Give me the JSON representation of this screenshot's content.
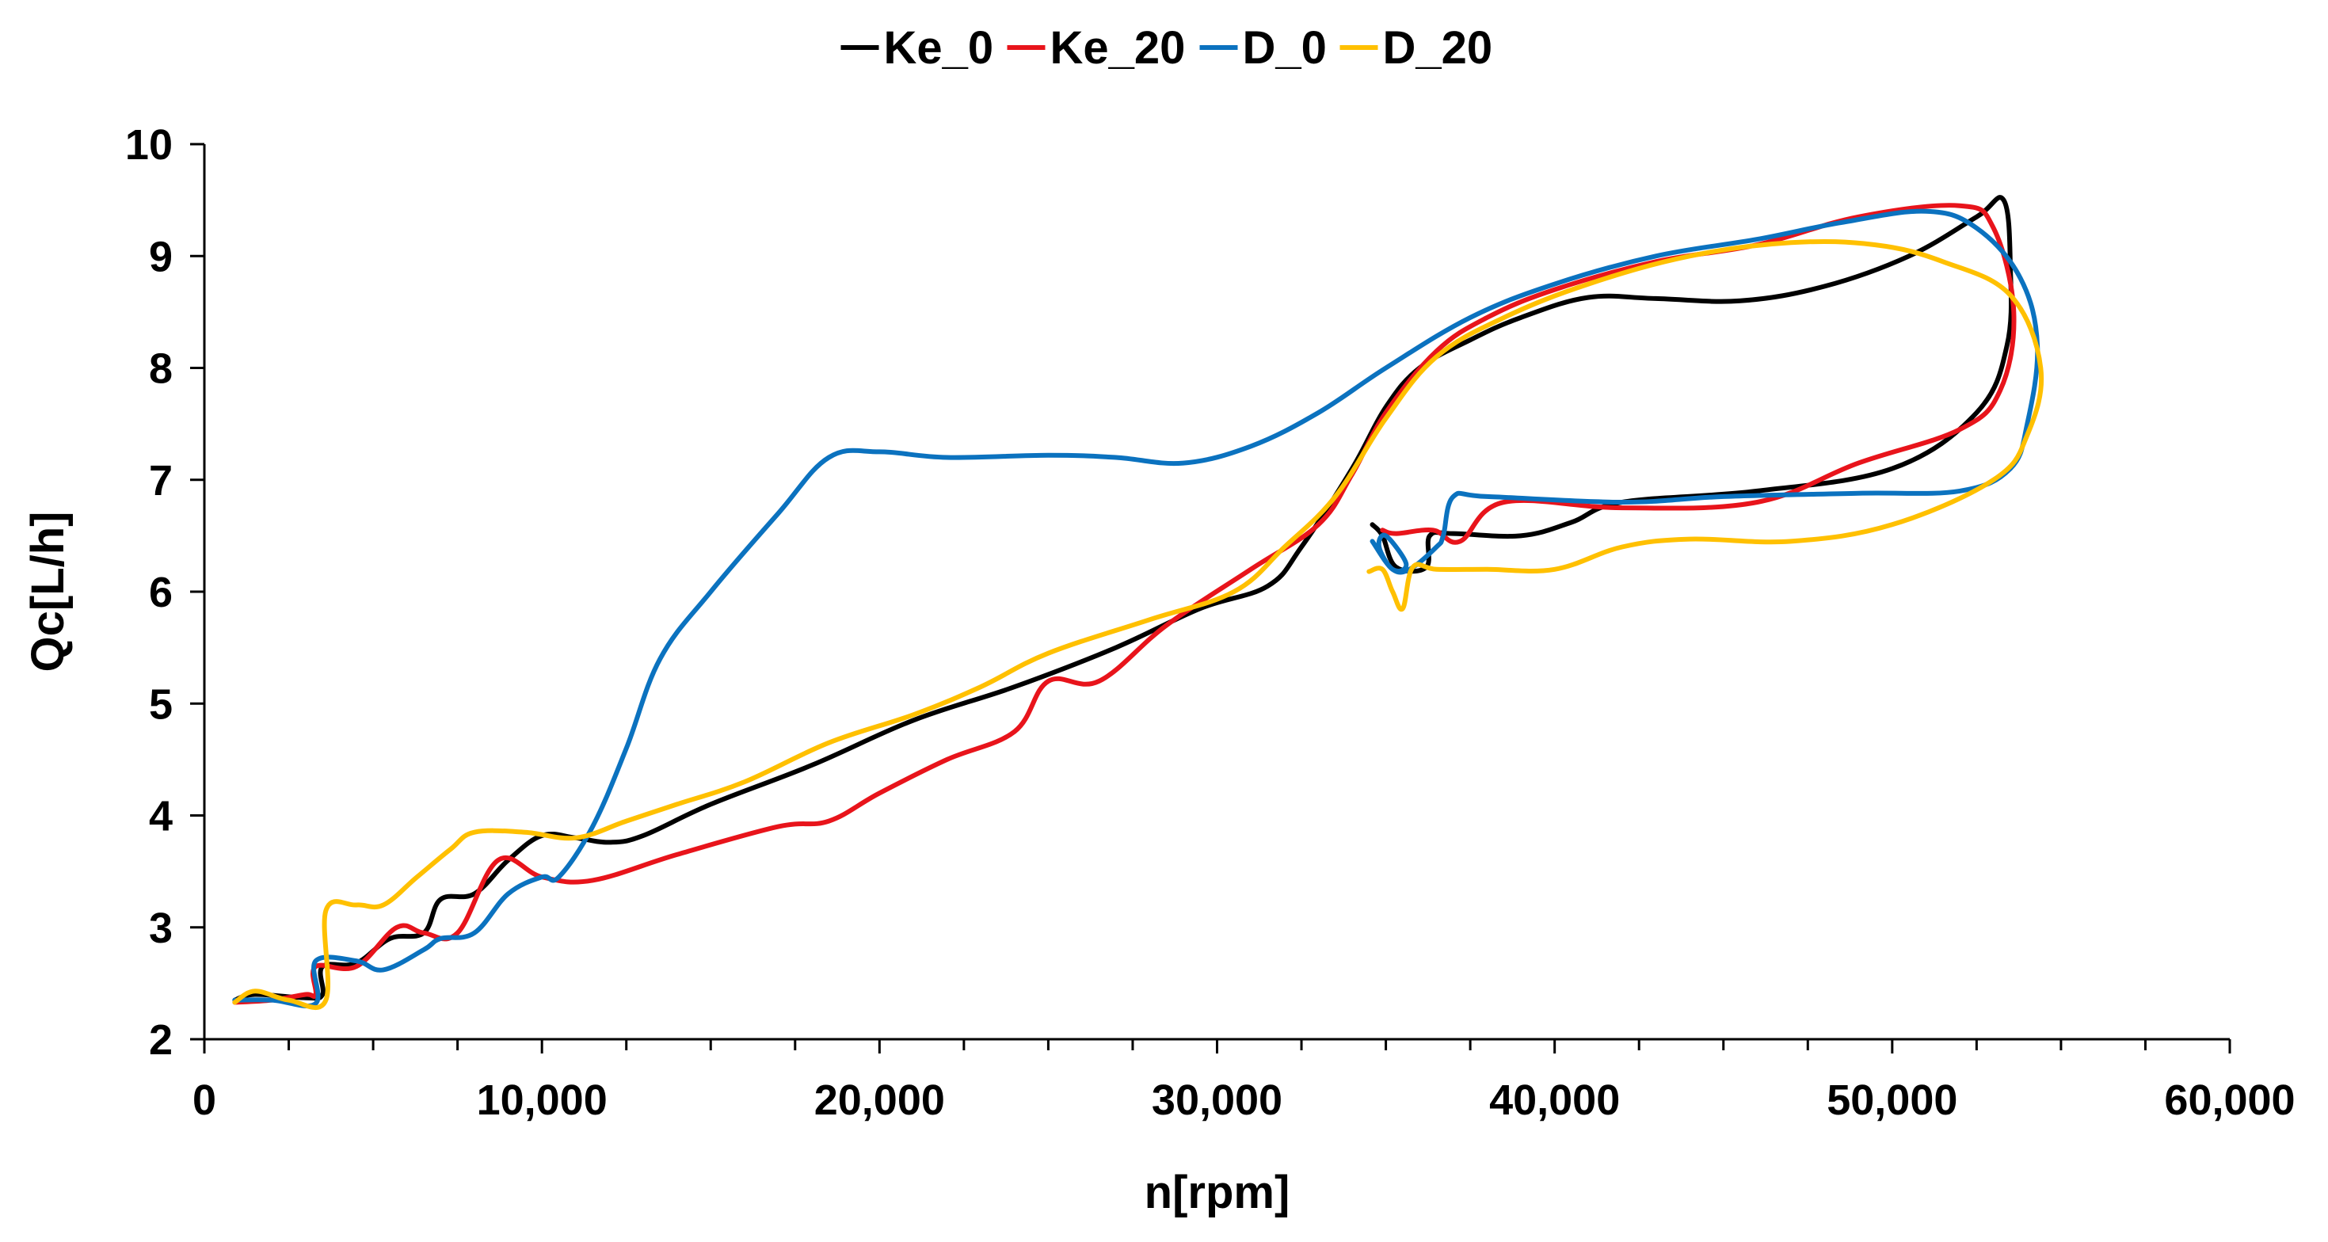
{
  "chart_data": {
    "type": "line",
    "title": "",
    "xlabel": "n[rpm]",
    "ylabel": "Qc[L/h]",
    "xlim": [
      0,
      60000
    ],
    "ylim": [
      2,
      10
    ],
    "xticks": [
      0,
      10000,
      20000,
      30000,
      40000,
      50000,
      60000
    ],
    "xtick_labels": [
      "0",
      "10,000",
      "20,000",
      "30,000",
      "40,000",
      "50,000",
      "60,000"
    ],
    "yticks": [
      2,
      3,
      4,
      5,
      6,
      7,
      8,
      9,
      10
    ],
    "ytick_labels": [
      "2",
      "3",
      "4",
      "5",
      "6",
      "7",
      "8",
      "9",
      "10"
    ],
    "grid": false,
    "legend": "top-center",
    "series": [
      {
        "name": "Ke_0",
        "color": "#000000",
        "points": [
          [
            900,
            2.35
          ],
          [
            1500,
            2.4
          ],
          [
            3000,
            2.37
          ],
          [
            3500,
            2.4
          ],
          [
            3500,
            2.65
          ],
          [
            4500,
            2.68
          ],
          [
            5500,
            2.9
          ],
          [
            6500,
            2.95
          ],
          [
            7000,
            3.25
          ],
          [
            8000,
            3.3
          ],
          [
            9000,
            3.6
          ],
          [
            10000,
            3.82
          ],
          [
            11000,
            3.8
          ],
          [
            12000,
            3.76
          ],
          [
            13000,
            3.82
          ],
          [
            15000,
            4.1
          ],
          [
            18000,
            4.45
          ],
          [
            21000,
            4.85
          ],
          [
            24000,
            5.15
          ],
          [
            27000,
            5.5
          ],
          [
            29500,
            5.85
          ],
          [
            31500,
            6.05
          ],
          [
            32500,
            6.4
          ],
          [
            34000,
            7.1
          ],
          [
            35000,
            7.65
          ],
          [
            36000,
            8.0
          ],
          [
            37500,
            8.25
          ],
          [
            39000,
            8.45
          ],
          [
            41000,
            8.63
          ],
          [
            43000,
            8.62
          ],
          [
            45500,
            8.6
          ],
          [
            48000,
            8.73
          ],
          [
            50500,
            9.0
          ],
          [
            52500,
            9.35
          ],
          [
            53300,
            9.5
          ],
          [
            53500,
            8.9
          ],
          [
            53400,
            8.2
          ],
          [
            52500,
            7.6
          ],
          [
            50000,
            7.1
          ],
          [
            46000,
            6.9
          ],
          [
            42000,
            6.8
          ],
          [
            40500,
            6.62
          ],
          [
            39000,
            6.5
          ],
          [
            37000,
            6.52
          ],
          [
            36300,
            6.5
          ],
          [
            36200,
            6.22
          ],
          [
            35300,
            6.22
          ],
          [
            34900,
            6.5
          ],
          [
            34600,
            6.6
          ]
        ]
      },
      {
        "name": "Ke_20",
        "color": "#e8141b",
        "points": [
          [
            900,
            2.33
          ],
          [
            2000,
            2.35
          ],
          [
            3000,
            2.4
          ],
          [
            3300,
            2.4
          ],
          [
            3300,
            2.65
          ],
          [
            4500,
            2.65
          ],
          [
            5700,
            3.0
          ],
          [
            6500,
            2.95
          ],
          [
            7500,
            2.95
          ],
          [
            8700,
            3.6
          ],
          [
            10000,
            3.45
          ],
          [
            11500,
            3.42
          ],
          [
            14000,
            3.65
          ],
          [
            17000,
            3.9
          ],
          [
            18500,
            3.95
          ],
          [
            20000,
            4.2
          ],
          [
            22000,
            4.5
          ],
          [
            24000,
            4.75
          ],
          [
            25000,
            5.2
          ],
          [
            26500,
            5.2
          ],
          [
            28500,
            5.7
          ],
          [
            31000,
            6.2
          ],
          [
            33000,
            6.6
          ],
          [
            34000,
            7.05
          ],
          [
            35000,
            7.6
          ],
          [
            36500,
            8.15
          ],
          [
            38000,
            8.45
          ],
          [
            40000,
            8.7
          ],
          [
            43000,
            8.95
          ],
          [
            46000,
            9.1
          ],
          [
            49000,
            9.35
          ],
          [
            52000,
            9.45
          ],
          [
            53000,
            9.25
          ],
          [
            53600,
            8.5
          ],
          [
            53200,
            7.8
          ],
          [
            52000,
            7.45
          ],
          [
            49000,
            7.15
          ],
          [
            46000,
            6.8
          ],
          [
            42000,
            6.75
          ],
          [
            38500,
            6.8
          ],
          [
            37200,
            6.45
          ],
          [
            36400,
            6.55
          ],
          [
            35300,
            6.52
          ],
          [
            34900,
            6.55
          ]
        ]
      },
      {
        "name": "D_0",
        "color": "#0b72bf",
        "points": [
          [
            900,
            2.35
          ],
          [
            2000,
            2.35
          ],
          [
            3300,
            2.32
          ],
          [
            3300,
            2.7
          ],
          [
            4500,
            2.7
          ],
          [
            5300,
            2.62
          ],
          [
            6500,
            2.8
          ],
          [
            7000,
            2.9
          ],
          [
            8000,
            2.95
          ],
          [
            9000,
            3.3
          ],
          [
            10000,
            3.45
          ],
          [
            10500,
            3.45
          ],
          [
            11500,
            3.9
          ],
          [
            12500,
            4.6
          ],
          [
            13500,
            5.4
          ],
          [
            15000,
            6.0
          ],
          [
            17000,
            6.7
          ],
          [
            18500,
            7.2
          ],
          [
            20000,
            7.25
          ],
          [
            22000,
            7.2
          ],
          [
            25000,
            7.22
          ],
          [
            27000,
            7.2
          ],
          [
            29000,
            7.15
          ],
          [
            31000,
            7.3
          ],
          [
            33000,
            7.6
          ],
          [
            35000,
            8.0
          ],
          [
            37500,
            8.45
          ],
          [
            40000,
            8.75
          ],
          [
            43000,
            9.0
          ],
          [
            46000,
            9.15
          ],
          [
            48500,
            9.3
          ],
          [
            51000,
            9.4
          ],
          [
            52500,
            9.25
          ],
          [
            53800,
            8.8
          ],
          [
            54300,
            8.2
          ],
          [
            54000,
            7.5
          ],
          [
            53500,
            7.1
          ],
          [
            52000,
            6.9
          ],
          [
            49000,
            6.88
          ],
          [
            45000,
            6.85
          ],
          [
            42000,
            6.8
          ],
          [
            38000,
            6.85
          ],
          [
            37000,
            6.85
          ],
          [
            36700,
            6.5
          ],
          [
            36500,
            6.4
          ],
          [
            35700,
            6.2
          ],
          [
            35200,
            6.2
          ],
          [
            34800,
            6.4
          ],
          [
            35000,
            6.5
          ],
          [
            35600,
            6.25
          ],
          [
            35200,
            6.2
          ],
          [
            34600,
            6.45
          ]
        ]
      },
      {
        "name": "D_20",
        "color": "#ffc000",
        "points": [
          [
            900,
            2.33
          ],
          [
            1500,
            2.43
          ],
          [
            2500,
            2.35
          ],
          [
            3600,
            2.35
          ],
          [
            3600,
            3.15
          ],
          [
            4500,
            3.2
          ],
          [
            5300,
            3.2
          ],
          [
            6300,
            3.45
          ],
          [
            7300,
            3.7
          ],
          [
            8000,
            3.85
          ],
          [
            9500,
            3.85
          ],
          [
            11000,
            3.8
          ],
          [
            12500,
            3.95
          ],
          [
            14000,
            4.1
          ],
          [
            16000,
            4.3
          ],
          [
            18500,
            4.65
          ],
          [
            21000,
            4.9
          ],
          [
            23000,
            5.15
          ],
          [
            25000,
            5.45
          ],
          [
            28000,
            5.75
          ],
          [
            30500,
            6.0
          ],
          [
            32000,
            6.4
          ],
          [
            33500,
            6.85
          ],
          [
            35000,
            7.55
          ],
          [
            36500,
            8.1
          ],
          [
            38500,
            8.45
          ],
          [
            41000,
            8.75
          ],
          [
            44000,
            9.0
          ],
          [
            47000,
            9.12
          ],
          [
            49500,
            9.1
          ],
          [
            51500,
            8.95
          ],
          [
            53500,
            8.65
          ],
          [
            54400,
            8.0
          ],
          [
            54000,
            7.4
          ],
          [
            53000,
            7.0
          ],
          [
            50000,
            6.6
          ],
          [
            47000,
            6.45
          ],
          [
            44000,
            6.47
          ],
          [
            42000,
            6.4
          ],
          [
            40000,
            6.2
          ],
          [
            38000,
            6.2
          ],
          [
            36500,
            6.2
          ],
          [
            35800,
            6.22
          ],
          [
            35500,
            5.85
          ],
          [
            35200,
            6.0
          ],
          [
            34900,
            6.2
          ],
          [
            34500,
            6.18
          ]
        ]
      }
    ]
  }
}
